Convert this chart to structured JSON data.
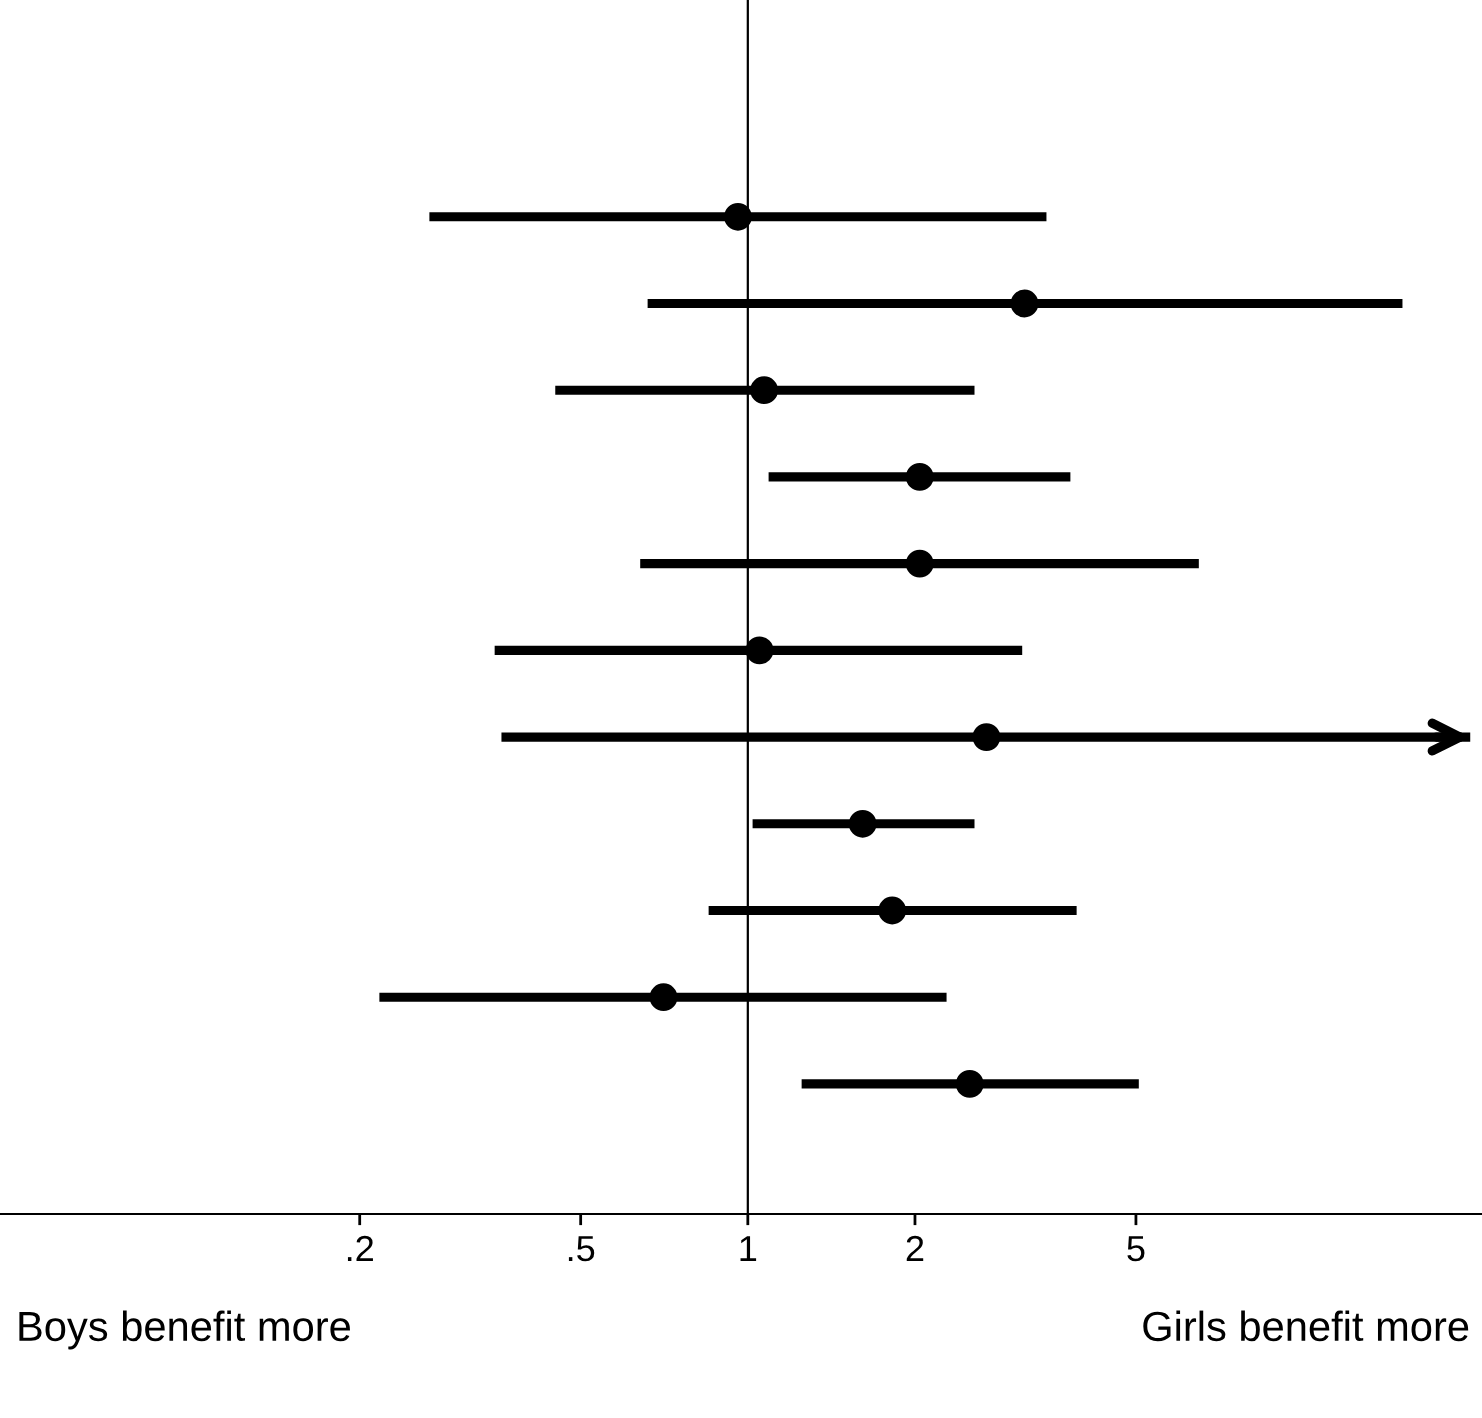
{
  "chart_data": {
    "type": "scatter",
    "orientation": "horizontal",
    "categories": [
      null,
      null,
      null,
      null,
      null,
      null,
      null,
      null,
      null,
      null,
      null,
      null,
      null,
      null
    ],
    "values": [
      null,
      null,
      0.96,
      3.15,
      1.07,
      2.04,
      2.04,
      1.05,
      2.69,
      1.61,
      1.82,
      0.705,
      2.51,
      null
    ],
    "errors": [
      null,
      null,
      [
        0.267,
        3.45
      ],
      [
        0.66,
        15.1
      ],
      [
        0.45,
        2.56
      ],
      [
        1.09,
        3.81
      ],
      [
        0.64,
        6.49
      ],
      [
        0.35,
        3.12
      ],
      [
        0.36,
        20
      ],
      [
        1.02,
        2.56
      ],
      [
        0.85,
        3.91
      ],
      [
        0.217,
        2.28
      ],
      [
        1.25,
        5.06
      ],
      null
    ],
    "color": "#000000",
    "marker": "circle",
    "log": "x",
    "xlim": [
      0.045,
      21
    ],
    "xticks": [
      {
        "value": 0.2,
        "label": ".2"
      },
      {
        "value": 0.5,
        "label": ".5"
      },
      1,
      2,
      5
    ],
    "ref_lines": [
      {
        "axis": "x",
        "value": 1,
        "color": "#000000"
      }
    ],
    "annotations": [
      "Boys benefit more",
      "Girls benefit more"
    ],
    "grid": false,
    "legend": false,
    "tick_labels": "x"
  }
}
